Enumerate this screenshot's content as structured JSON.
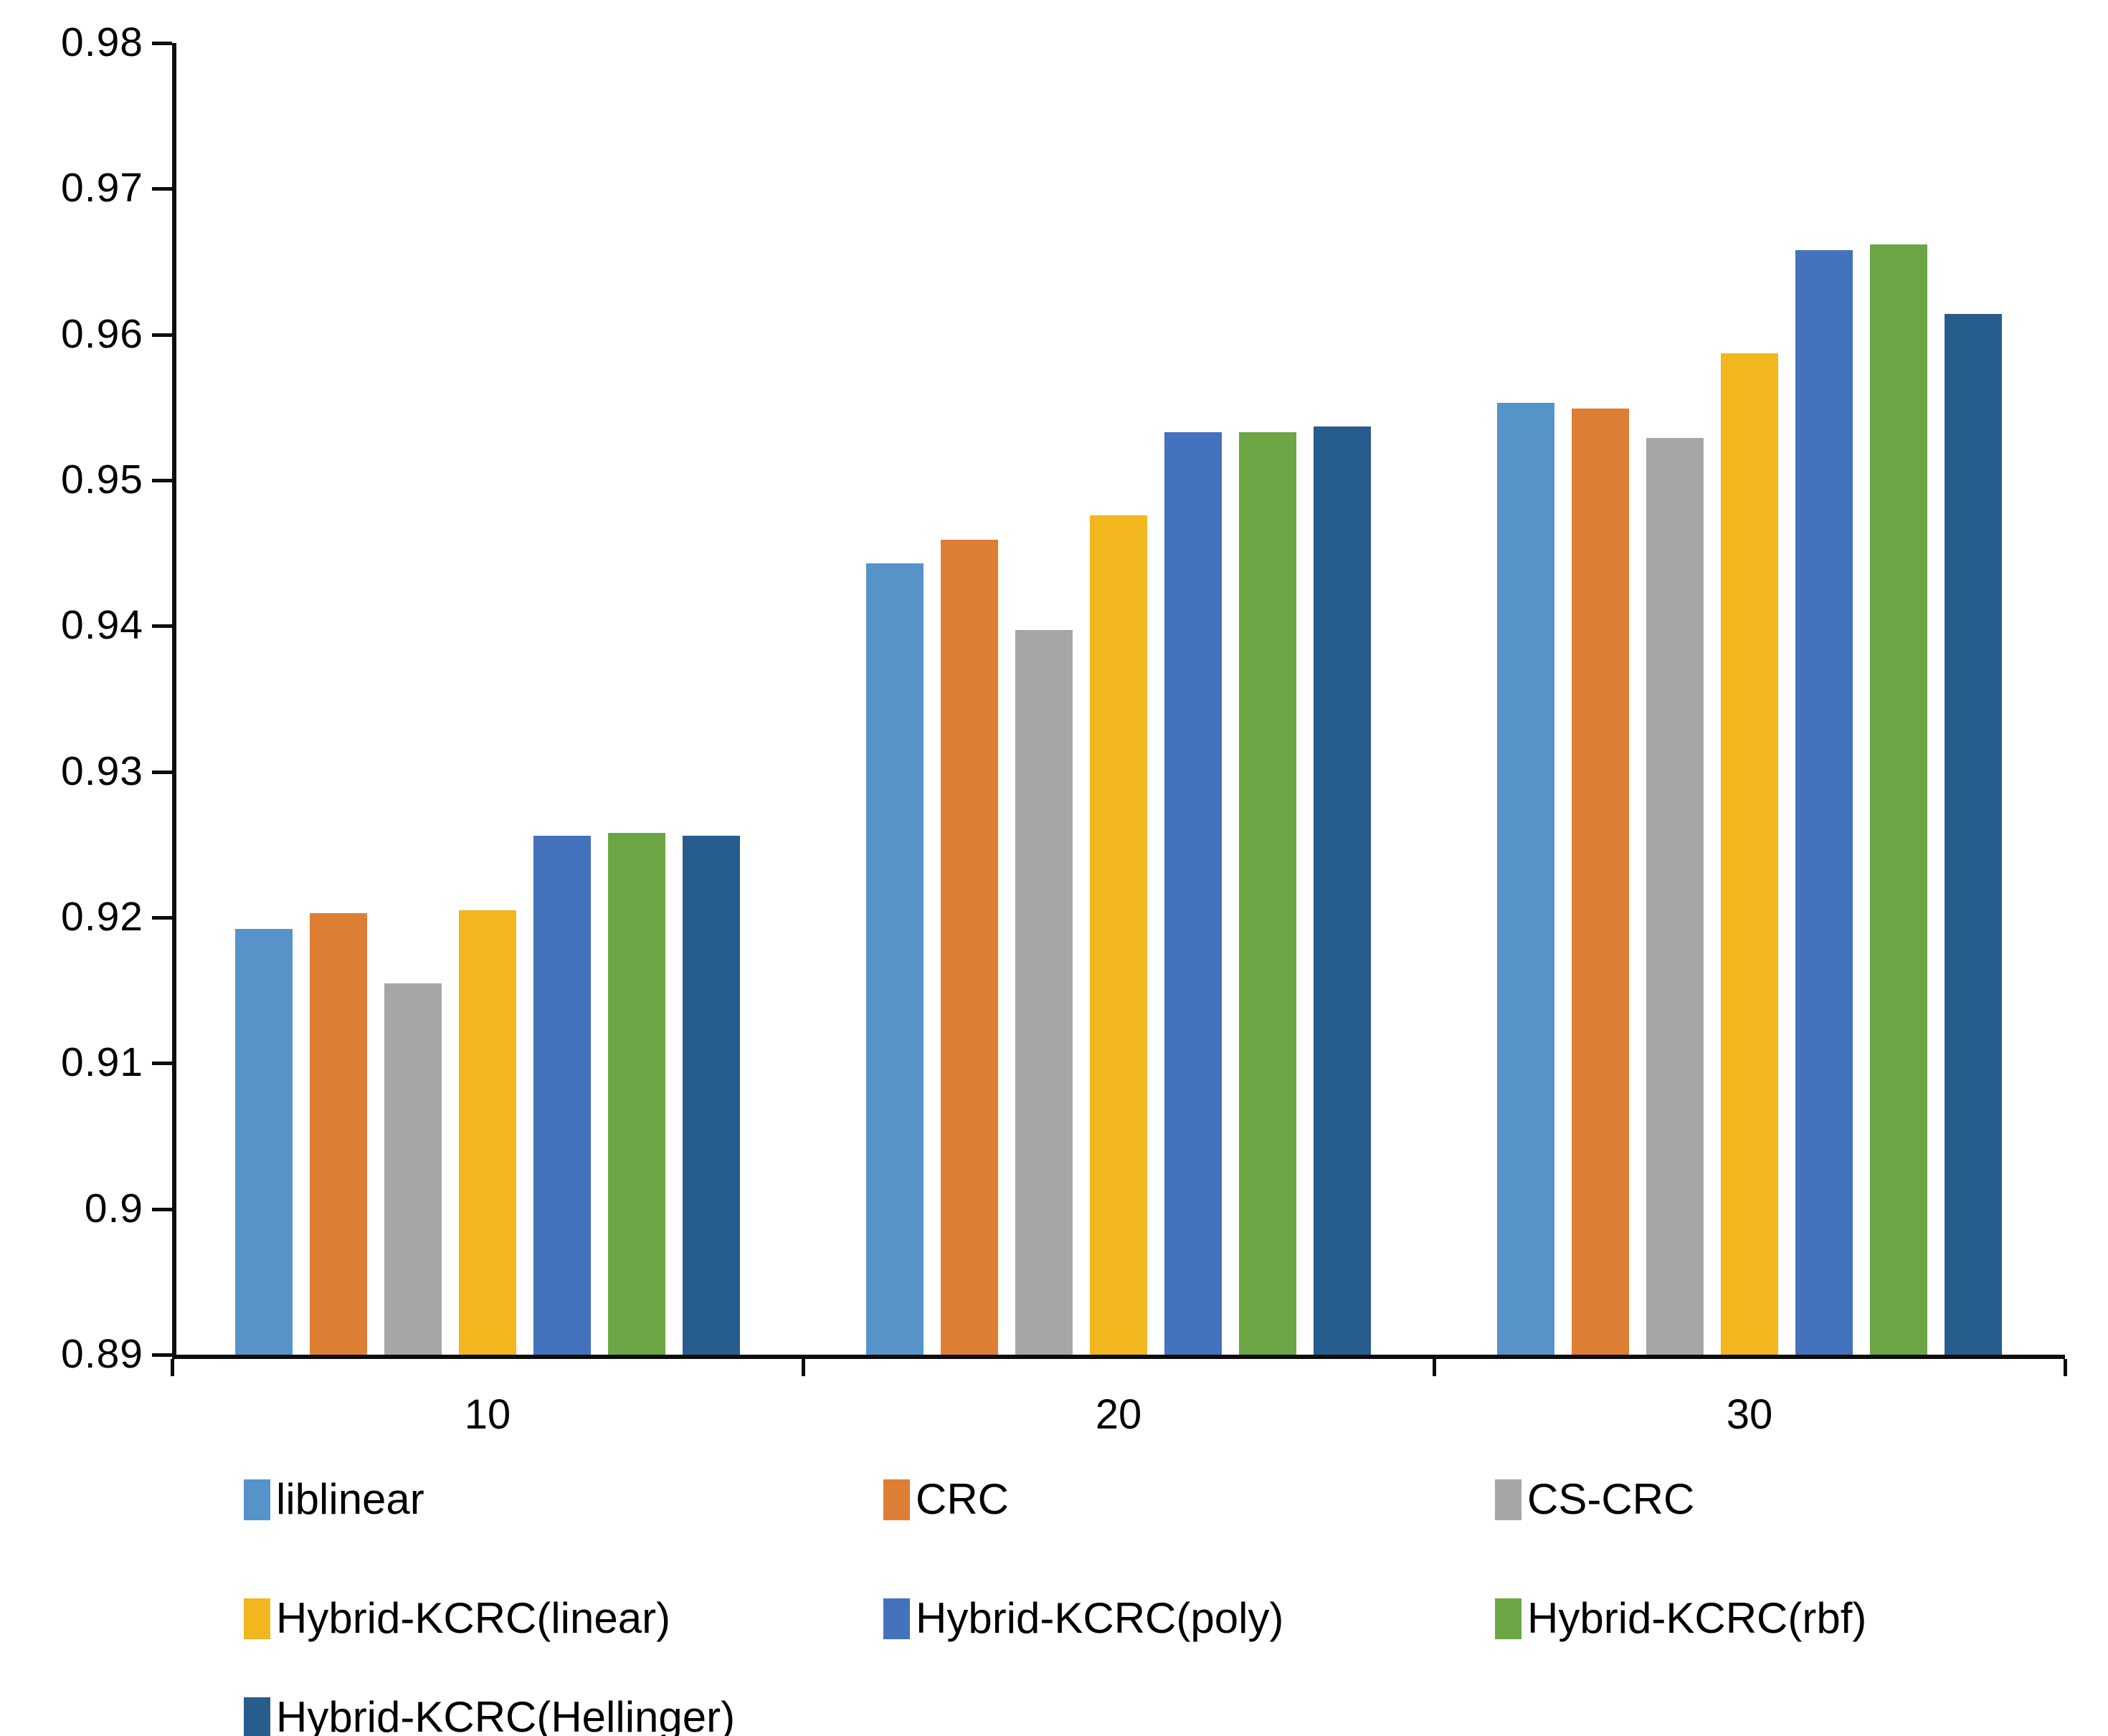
{
  "chart_data": {
    "type": "bar",
    "title": "",
    "xlabel": "",
    "ylabel": "",
    "grid": false,
    "legend_position": "bottom",
    "categories": [
      "10",
      "20",
      "30"
    ],
    "series": [
      {
        "name": "liblinear",
        "color": "#5693C9",
        "values": [
          0.9192,
          0.9443,
          0.9553
        ]
      },
      {
        "name": "CRC",
        "color": "#DE7E35",
        "values": [
          0.9203,
          0.9459,
          0.9549
        ]
      },
      {
        "name": "CS-CRC",
        "color": "#A6A6A6",
        "values": [
          0.9155,
          0.9397,
          0.9529
        ]
      },
      {
        "name": "Hybrid-KCRC(linear)",
        "color": "#F2B61E",
        "values": [
          0.9205,
          0.9476,
          0.9587
        ]
      },
      {
        "name": "Hybrid-KCRC(poly)",
        "color": "#4472BC",
        "values": [
          0.9256,
          0.9533,
          0.9658
        ]
      },
      {
        "name": "Hybrid-KCRC(rbf)",
        "color": "#6CA644",
        "values": [
          0.9258,
          0.9533,
          0.9662
        ]
      },
      {
        "name": "Hybrid-KCRC(Hellinger)",
        "color": "#275D8C",
        "values": [
          0.9256,
          0.9537,
          0.9614
        ]
      }
    ],
    "ylim": [
      0.89,
      0.98
    ],
    "ytick_step": 0.01,
    "ytick_labels": [
      "0.89",
      "0.9",
      "0.91",
      "0.92",
      "0.93",
      "0.94",
      "0.95",
      "0.96",
      "0.97",
      "0.98"
    ],
    "axis_color": "#0d0d0d"
  }
}
